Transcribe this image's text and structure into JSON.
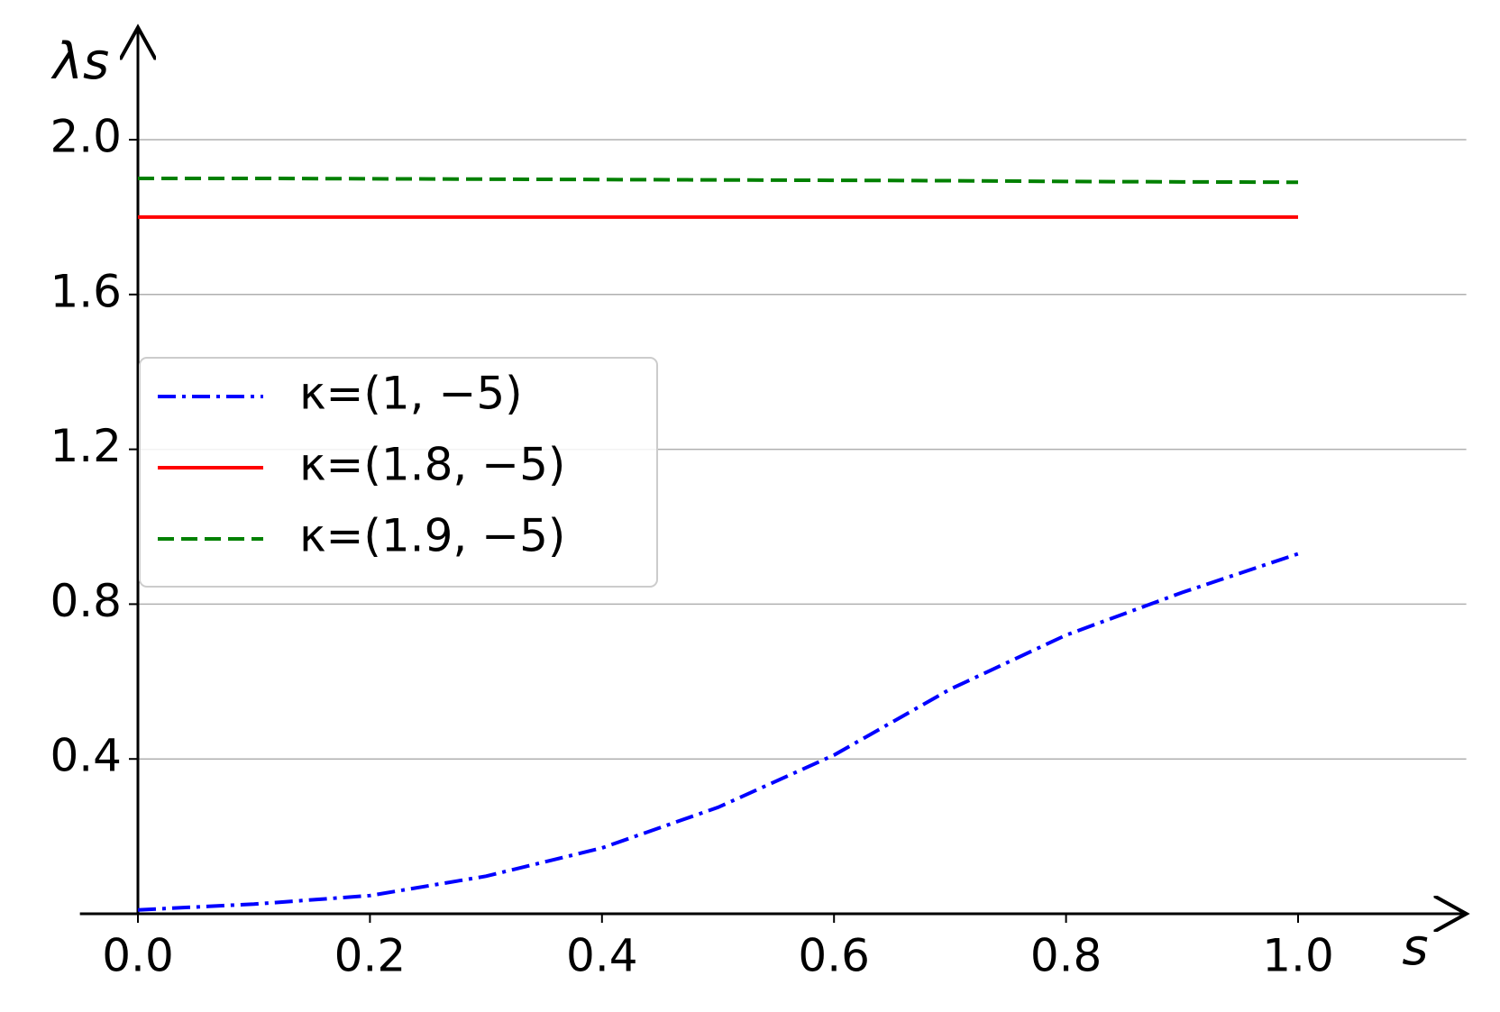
{
  "chart_data": {
    "type": "line",
    "xlabel": "s",
    "ylabel": "λs",
    "x": [
      0,
      0.1,
      0.2,
      0.3,
      0.4,
      0.5,
      0.6,
      0.7,
      0.8,
      0.9,
      1.0
    ],
    "series": [
      {
        "name": "κ=(1, −5)",
        "color": "#0000ff",
        "linestyle": "dashdot",
        "values": [
          0.01,
          0.025,
          0.047,
          0.097,
          0.17,
          0.275,
          0.41,
          0.58,
          0.72,
          0.83,
          0.93
        ]
      },
      {
        "name": "κ=(1.8, −5)",
        "color": "#ff0000",
        "linestyle": "solid",
        "values": [
          1.8,
          1.8,
          1.8,
          1.8,
          1.8,
          1.8,
          1.8,
          1.8,
          1.8,
          1.8,
          1.8
        ]
      },
      {
        "name": "κ=(1.9, −5)",
        "color": "#008000",
        "linestyle": "dashed",
        "values": [
          1.9,
          1.9,
          1.899,
          1.898,
          1.897,
          1.896,
          1.895,
          1.894,
          1.892,
          1.891,
          1.89
        ]
      }
    ],
    "xlim": [
      -0.05,
      1.145
    ],
    "ylim": [
      0,
      2.29
    ],
    "xticks": [
      {
        "value": 0,
        "label": "0.0"
      },
      0.2,
      0.4,
      0.6,
      0.8,
      {
        "value": 1,
        "label": "1.0"
      }
    ],
    "yticks": [
      0.4,
      0.8,
      1.2,
      1.6,
      {
        "value": 2,
        "label": "2.0"
      }
    ],
    "grid": true,
    "legend": "center left"
  }
}
